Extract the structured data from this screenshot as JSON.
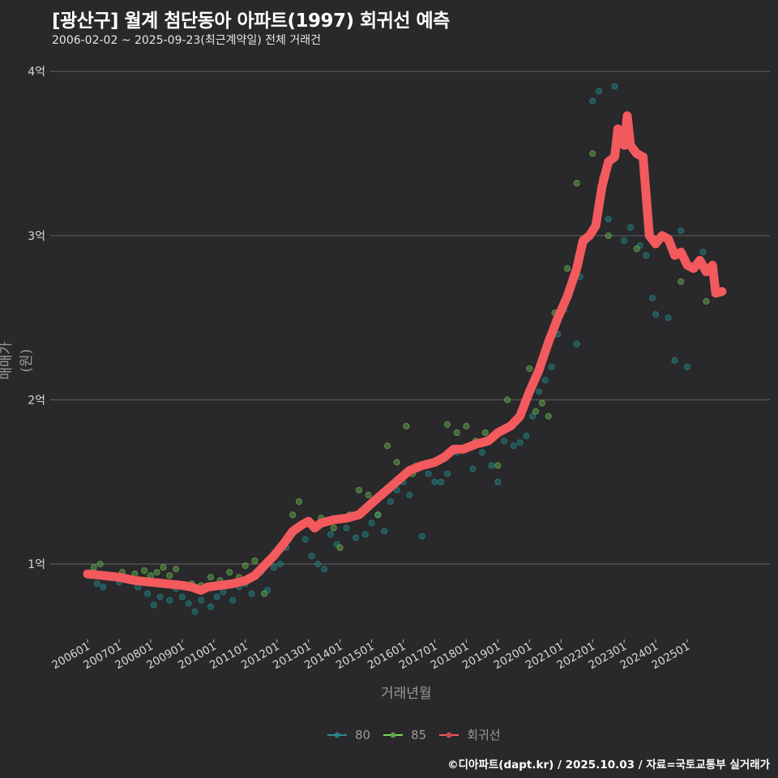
{
  "title": "[광산구] 월계 첨단동아 아파트(1997) 회귀선 예측",
  "subtitle": "2006-02-02 ~ 2025-09-23(최근계약일) 전체 거래건",
  "footer": "©디아파트(dapt.kr) / 2025.10.03 / 자료=국토교통부 실거래가",
  "colors": {
    "background": "#29282b",
    "grid": "#5a5a5a",
    "s80": "#2a8d8f",
    "s85": "#7ed957",
    "regression": "#f25a5d"
  },
  "chart_data": {
    "type": "scatter",
    "title": "[광산구] 월계 첨단동아 아파트(1997) 회귀선 예측",
    "subtitle": "2006-02-02 ~ 2025-09-23(최근계약일) 전체 거래건",
    "xlabel": "거래년월",
    "ylabel": "매매가(원)",
    "x_ticks": [
      "200601",
      "200701",
      "200801",
      "200901",
      "201001",
      "201101",
      "201201",
      "201301",
      "201401",
      "201501",
      "201601",
      "201701",
      "201801",
      "201901",
      "202001",
      "202101",
      "202201",
      "202301",
      "202401",
      "202501"
    ],
    "y_ticks": [
      {
        "value": 1,
        "label": "1억"
      },
      {
        "value": 2,
        "label": "2억"
      },
      {
        "value": 3,
        "label": "3억"
      },
      {
        "value": 4,
        "label": "4억"
      }
    ],
    "ylim": [
      0.55,
      4.1
    ],
    "grid": true,
    "legend_position": "bottom",
    "legend": [
      "80",
      "85",
      "회귀선"
    ],
    "series": [
      {
        "name": "80",
        "type": "scatter",
        "points": [
          [
            2006.1,
            0.93
          ],
          [
            2006.3,
            0.88
          ],
          [
            2006.5,
            0.86
          ],
          [
            2006.7,
            0.92
          ],
          [
            2007.0,
            0.89
          ],
          [
            2007.3,
            0.9
          ],
          [
            2007.6,
            0.86
          ],
          [
            2007.9,
            0.82
          ],
          [
            2008.1,
            0.75
          ],
          [
            2008.3,
            0.8
          ],
          [
            2008.6,
            0.78
          ],
          [
            2008.8,
            0.85
          ],
          [
            2009.0,
            0.8
          ],
          [
            2009.2,
            0.76
          ],
          [
            2009.4,
            0.71
          ],
          [
            2009.6,
            0.78
          ],
          [
            2009.9,
            0.74
          ],
          [
            2010.1,
            0.8
          ],
          [
            2010.3,
            0.83
          ],
          [
            2010.6,
            0.78
          ],
          [
            2010.8,
            0.86
          ],
          [
            2011.0,
            0.88
          ],
          [
            2011.2,
            0.82
          ],
          [
            2011.5,
            0.95
          ],
          [
            2011.7,
            0.84
          ],
          [
            2011.9,
            0.98
          ],
          [
            2012.1,
            1.0
          ],
          [
            2012.3,
            1.1
          ],
          [
            2012.6,
            1.22
          ],
          [
            2012.9,
            1.15
          ],
          [
            2013.1,
            1.05
          ],
          [
            2013.3,
            1.0
          ],
          [
            2013.5,
            0.97
          ],
          [
            2013.7,
            1.18
          ],
          [
            2013.9,
            1.12
          ],
          [
            2014.2,
            1.22
          ],
          [
            2014.5,
            1.16
          ],
          [
            2014.8,
            1.18
          ],
          [
            2015.0,
            1.25
          ],
          [
            2015.2,
            1.3
          ],
          [
            2015.4,
            1.2
          ],
          [
            2015.6,
            1.38
          ],
          [
            2015.8,
            1.45
          ],
          [
            2016.0,
            1.5
          ],
          [
            2016.2,
            1.42
          ],
          [
            2016.4,
            1.6
          ],
          [
            2016.6,
            1.17
          ],
          [
            2016.8,
            1.55
          ],
          [
            2017.0,
            1.5
          ],
          [
            2017.2,
            1.5
          ],
          [
            2017.4,
            1.55
          ],
          [
            2017.7,
            1.68
          ],
          [
            2017.9,
            1.7
          ],
          [
            2018.2,
            1.58
          ],
          [
            2018.5,
            1.68
          ],
          [
            2018.8,
            1.6
          ],
          [
            2019.0,
            1.5
          ],
          [
            2019.2,
            1.75
          ],
          [
            2019.5,
            1.72
          ],
          [
            2019.7,
            1.74
          ],
          [
            2019.9,
            1.78
          ],
          [
            2020.1,
            1.9
          ],
          [
            2020.3,
            2.05
          ],
          [
            2020.5,
            2.12
          ],
          [
            2020.7,
            2.2
          ],
          [
            2020.9,
            2.4
          ],
          [
            2021.1,
            2.55
          ],
          [
            2021.2,
            2.62
          ],
          [
            2021.5,
            2.34
          ],
          [
            2021.6,
            2.75
          ],
          [
            2021.8,
            2.97
          ],
          [
            2022.0,
            3.82
          ],
          [
            2022.2,
            3.88
          ],
          [
            2022.3,
            3.35
          ],
          [
            2022.5,
            3.1
          ],
          [
            2022.7,
            3.91
          ],
          [
            2023.0,
            2.97
          ],
          [
            2023.2,
            3.05
          ],
          [
            2023.5,
            2.94
          ],
          [
            2023.7,
            2.88
          ],
          [
            2023.9,
            2.62
          ],
          [
            2024.0,
            2.52
          ],
          [
            2024.4,
            2.5
          ],
          [
            2024.6,
            2.24
          ],
          [
            2024.8,
            3.03
          ],
          [
            2025.0,
            2.2
          ],
          [
            2025.5,
            2.9
          ]
        ]
      },
      {
        "name": "85",
        "type": "scatter",
        "points": [
          [
            2006.2,
            0.98
          ],
          [
            2006.4,
            1.0
          ],
          [
            2006.6,
            0.92
          ],
          [
            2007.1,
            0.95
          ],
          [
            2007.5,
            0.94
          ],
          [
            2007.8,
            0.96
          ],
          [
            2008.0,
            0.93
          ],
          [
            2008.2,
            0.95
          ],
          [
            2008.4,
            0.98
          ],
          [
            2008.6,
            0.93
          ],
          [
            2008.8,
            0.97
          ],
          [
            2009.3,
            0.88
          ],
          [
            2009.6,
            0.87
          ],
          [
            2009.9,
            0.92
          ],
          [
            2010.2,
            0.9
          ],
          [
            2010.5,
            0.95
          ],
          [
            2010.8,
            0.92
          ],
          [
            2011.0,
            0.99
          ],
          [
            2011.3,
            1.02
          ],
          [
            2011.6,
            0.82
          ],
          [
            2012.0,
            1.08
          ],
          [
            2012.2,
            1.12
          ],
          [
            2012.5,
            1.3
          ],
          [
            2012.7,
            1.38
          ],
          [
            2013.0,
            1.25
          ],
          [
            2013.4,
            1.28
          ],
          [
            2013.8,
            1.22
          ],
          [
            2014.0,
            1.1
          ],
          [
            2014.3,
            1.3
          ],
          [
            2014.6,
            1.45
          ],
          [
            2014.9,
            1.42
          ],
          [
            2015.2,
            1.3
          ],
          [
            2015.5,
            1.72
          ],
          [
            2015.8,
            1.62
          ],
          [
            2016.1,
            1.84
          ],
          [
            2016.3,
            1.55
          ],
          [
            2016.6,
            1.6
          ],
          [
            2017.0,
            1.62
          ],
          [
            2017.4,
            1.85
          ],
          [
            2017.7,
            1.8
          ],
          [
            2018.0,
            1.84
          ],
          [
            2018.3,
            1.75
          ],
          [
            2018.6,
            1.8
          ],
          [
            2019.0,
            1.6
          ],
          [
            2019.3,
            2.0
          ],
          [
            2019.7,
            1.92
          ],
          [
            2020.0,
            2.19
          ],
          [
            2020.2,
            1.93
          ],
          [
            2020.4,
            1.98
          ],
          [
            2020.6,
            1.9
          ],
          [
            2020.8,
            2.53
          ],
          [
            2021.2,
            2.8
          ],
          [
            2021.5,
            3.32
          ],
          [
            2022.0,
            3.5
          ],
          [
            2022.5,
            3.0
          ],
          [
            2023.4,
            2.92
          ],
          [
            2023.8,
            3.1
          ],
          [
            2024.0,
            2.98
          ],
          [
            2024.8,
            2.72
          ],
          [
            2025.6,
            2.6
          ]
        ]
      },
      {
        "name": "회귀선",
        "type": "line",
        "points": [
          [
            2006.0,
            0.94
          ],
          [
            2006.5,
            0.93
          ],
          [
            2007.0,
            0.92
          ],
          [
            2007.5,
            0.9
          ],
          [
            2008.0,
            0.89
          ],
          [
            2008.5,
            0.88
          ],
          [
            2009.0,
            0.87
          ],
          [
            2009.3,
            0.86
          ],
          [
            2009.6,
            0.84
          ],
          [
            2009.8,
            0.86
          ],
          [
            2010.2,
            0.87
          ],
          [
            2010.6,
            0.88
          ],
          [
            2011.0,
            0.9
          ],
          [
            2011.3,
            0.93
          ],
          [
            2011.6,
            0.99
          ],
          [
            2011.9,
            1.05
          ],
          [
            2012.2,
            1.12
          ],
          [
            2012.5,
            1.2
          ],
          [
            2012.8,
            1.24
          ],
          [
            2013.0,
            1.26
          ],
          [
            2013.2,
            1.22
          ],
          [
            2013.4,
            1.25
          ],
          [
            2013.8,
            1.27
          ],
          [
            2014.2,
            1.28
          ],
          [
            2014.6,
            1.3
          ],
          [
            2015.0,
            1.37
          ],
          [
            2015.3,
            1.42
          ],
          [
            2015.6,
            1.47
          ],
          [
            2015.9,
            1.52
          ],
          [
            2016.2,
            1.57
          ],
          [
            2016.6,
            1.6
          ],
          [
            2017.0,
            1.62
          ],
          [
            2017.3,
            1.65
          ],
          [
            2017.6,
            1.7
          ],
          [
            2017.9,
            1.7
          ],
          [
            2018.3,
            1.73
          ],
          [
            2018.7,
            1.75
          ],
          [
            2019.0,
            1.8
          ],
          [
            2019.4,
            1.84
          ],
          [
            2019.7,
            1.9
          ],
          [
            2020.0,
            2.05
          ],
          [
            2020.3,
            2.18
          ],
          [
            2020.6,
            2.35
          ],
          [
            2020.9,
            2.5
          ],
          [
            2021.2,
            2.63
          ],
          [
            2021.5,
            2.8
          ],
          [
            2021.7,
            2.97
          ],
          [
            2021.9,
            3.0
          ],
          [
            2022.1,
            3.06
          ],
          [
            2022.3,
            3.3
          ],
          [
            2022.5,
            3.45
          ],
          [
            2022.7,
            3.48
          ],
          [
            2022.8,
            3.65
          ],
          [
            2023.0,
            3.55
          ],
          [
            2023.1,
            3.73
          ],
          [
            2023.2,
            3.55
          ],
          [
            2023.4,
            3.5
          ],
          [
            2023.6,
            3.48
          ],
          [
            2023.8,
            3.0
          ],
          [
            2024.0,
            2.95
          ],
          [
            2024.2,
            3.0
          ],
          [
            2024.4,
            2.98
          ],
          [
            2024.6,
            2.88
          ],
          [
            2024.8,
            2.9
          ],
          [
            2025.0,
            2.82
          ],
          [
            2025.2,
            2.8
          ],
          [
            2025.4,
            2.85
          ],
          [
            2025.6,
            2.78
          ],
          [
            2025.8,
            2.82
          ],
          [
            2025.9,
            2.65
          ],
          [
            2026.1,
            2.66
          ]
        ]
      }
    ]
  }
}
